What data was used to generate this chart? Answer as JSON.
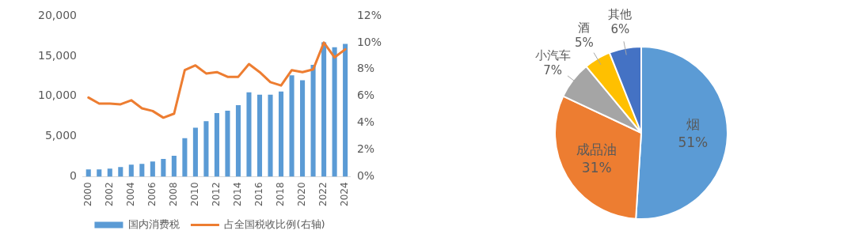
{
  "chart_data": [
    {
      "type": "bar",
      "categories": [
        "2000",
        null,
        "2002",
        null,
        "2004",
        null,
        "2006",
        null,
        "2008",
        null,
        "2010",
        null,
        "2012",
        null,
        "2014",
        null,
        "2016",
        null,
        "2018",
        null,
        "2020",
        null,
        "2022",
        null,
        "2024"
      ],
      "series": [
        {
          "name": "国内消费税",
          "type": "bar",
          "color": "#5b9bd5",
          "values": [
            900,
            900,
            1000,
            1200,
            1500,
            1600,
            1900,
            2200,
            2600,
            4800,
            6100,
            6900,
            7900,
            8200,
            8900,
            10500,
            10200,
            10200,
            10600,
            12600,
            12000,
            13900,
            16700,
            16100,
            16500
          ]
        },
        {
          "name": "占全国税收比例(右轴)",
          "type": "line",
          "axis": "y2",
          "color": "#ed7d31",
          "values": [
            5.9,
            5.45,
            5.45,
            5.4,
            5.7,
            5.1,
            4.9,
            4.4,
            4.7,
            7.95,
            8.3,
            7.7,
            7.8,
            7.45,
            7.45,
            8.4,
            7.8,
            7.05,
            6.8,
            7.95,
            7.8,
            8.0,
            10.0,
            8.9,
            9.5
          ]
        }
      ],
      "ylim": [
        0,
        20000
      ],
      "yticks": [
        0,
        {
          "value": 5000,
          "label": "5,000"
        },
        {
          "value": 10000,
          "label": "10,000"
        },
        {
          "value": 15000,
          "label": "15,000"
        },
        {
          "value": 20000,
          "label": "20,000"
        }
      ],
      "y2lim": [
        0,
        12
      ],
      "y2ticks": [
        {
          "value": 0,
          "label": "0%"
        },
        {
          "value": 2,
          "label": "2%"
        },
        {
          "value": 4,
          "label": "4%"
        },
        {
          "value": 6,
          "label": "6%"
        },
        {
          "value": 8,
          "label": "8%"
        },
        {
          "value": 10,
          "label": "10%"
        },
        {
          "value": 12,
          "label": "12%"
        }
      ],
      "grid": false,
      "legend": "bottom",
      "marker": "none",
      "line_style": "solid"
    },
    {
      "type": "pie",
      "categories": [
        "烟",
        "成品油",
        "小汽车",
        "酒",
        "其他"
      ],
      "values": [
        51,
        31,
        7,
        5,
        6
      ],
      "colors": [
        "#5b9bd5",
        "#ed7d31",
        "#a5a5a5",
        "#ffc000",
        "#4472c4"
      ],
      "value_labels": [
        "51%",
        "31%",
        "7%",
        "5%",
        "6%"
      ]
    }
  ]
}
